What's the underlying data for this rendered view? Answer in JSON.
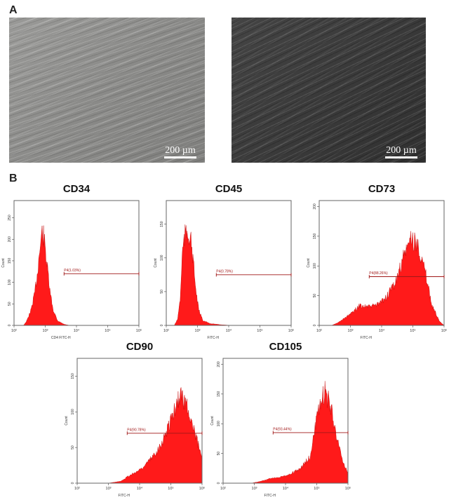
{
  "panel_a": {
    "label": "A",
    "images": [
      {
        "scale_bar": "200 µm"
      },
      {
        "scale_bar": "200 µm"
      }
    ]
  },
  "panel_b": {
    "label": "B"
  },
  "chart_data": [
    {
      "type": "area",
      "title": "CD34",
      "xlabel": "CD4 FITC-H",
      "ylabel": "Count",
      "xscale": "log",
      "xlim": [
        100,
        1000000
      ],
      "ylim": [
        0,
        290
      ],
      "xticks": [
        "10²",
        "10³",
        "10⁴",
        "10⁵",
        "10⁶"
      ],
      "yticks": [
        0,
        50,
        100,
        150,
        200,
        250
      ],
      "gate": {
        "label": "P4(1.03%)",
        "range": [
          4000,
          1000000
        ],
        "level": 120
      },
      "color": "#ff1a1a",
      "points": [
        [
          200,
          0
        ],
        [
          250,
          10
        ],
        [
          350,
          40
        ],
        [
          450,
          80
        ],
        [
          550,
          130
        ],
        [
          650,
          190
        ],
        [
          800,
          245
        ],
        [
          900,
          230
        ],
        [
          1100,
          170
        ],
        [
          1400,
          90
        ],
        [
          1800,
          40
        ],
        [
          2500,
          12
        ],
        [
          4000,
          3
        ],
        [
          6000,
          0
        ]
      ]
    },
    {
      "type": "area",
      "title": "CD45",
      "xlabel": "FITC-H",
      "ylabel": "Count",
      "xscale": "log",
      "xlim": [
        100,
        1000000
      ],
      "ylim": [
        0,
        185
      ],
      "xticks": [
        "10²",
        "10³",
        "10⁴",
        "10⁵",
        "10⁶"
      ],
      "yticks": [
        0,
        50,
        100,
        150
      ],
      "gate": {
        "label": "P4(0.78%)",
        "range": [
          4000,
          1000000
        ],
        "level": 75
      },
      "color": "#ff1a1a",
      "points": [
        [
          180,
          0
        ],
        [
          230,
          10
        ],
        [
          280,
          45
        ],
        [
          330,
          125
        ],
        [
          400,
          150
        ],
        [
          480,
          155
        ],
        [
          600,
          145
        ],
        [
          750,
          100
        ],
        [
          900,
          55
        ],
        [
          1100,
          25
        ],
        [
          1500,
          8
        ],
        [
          2500,
          3
        ],
        [
          6000,
          1
        ],
        [
          12000,
          0
        ]
      ]
    },
    {
      "type": "area",
      "title": "CD73",
      "xlabel": "FITC-H",
      "ylabel": "Count",
      "xscale": "log",
      "xlim": [
        100,
        1000000
      ],
      "ylim": [
        0,
        210
      ],
      "xticks": [
        "10²",
        "10³",
        "10⁴",
        "10⁵",
        "10⁶"
      ],
      "yticks": [
        0,
        50,
        100,
        150,
        200
      ],
      "gate": {
        "label": "P4(88.26%)",
        "range": [
          4000,
          1000000
        ],
        "level": 82
      },
      "color": "#ff1a1a",
      "points": [
        [
          250,
          0
        ],
        [
          400,
          5
        ],
        [
          700,
          15
        ],
        [
          1200,
          25
        ],
        [
          2000,
          38
        ],
        [
          4000,
          35
        ],
        [
          8000,
          40
        ],
        [
          15000,
          55
        ],
        [
          30000,
          85
        ],
        [
          50000,
          130
        ],
        [
          90000,
          165
        ],
        [
          150000,
          150
        ],
        [
          250000,
          100
        ],
        [
          400000,
          40
        ],
        [
          700000,
          8
        ],
        [
          1000000,
          0
        ]
      ]
    },
    {
      "type": "area",
      "title": "CD90",
      "xlabel": "FITC-H",
      "ylabel": "Count",
      "xscale": "log",
      "xlim": [
        100,
        1000000
      ],
      "ylim": [
        0,
        175
      ],
      "xticks": [
        "10²",
        "10³",
        "10⁴",
        "10⁵",
        "10⁶"
      ],
      "yticks": [
        0,
        50,
        100,
        150
      ],
      "gate": {
        "label": "P4(90.78%)",
        "range": [
          4000,
          1000000
        ],
        "level": 70
      },
      "color": "#ff1a1a",
      "points": [
        [
          1000,
          0
        ],
        [
          2500,
          3
        ],
        [
          4000,
          10
        ],
        [
          8000,
          18
        ],
        [
          15000,
          28
        ],
        [
          30000,
          45
        ],
        [
          60000,
          70
        ],
        [
          100000,
          100
        ],
        [
          200000,
          140
        ],
        [
          350000,
          120
        ],
        [
          600000,
          75
        ],
        [
          1000000,
          45
        ]
      ]
    },
    {
      "type": "area",
      "title": "CD105",
      "xlabel": "FITC-H",
      "ylabel": "Count",
      "xscale": "log",
      "xlim": [
        100,
        1000000
      ],
      "ylim": [
        0,
        210
      ],
      "xticks": [
        "10²",
        "10³",
        "10⁴",
        "10⁵",
        "10⁶"
      ],
      "yticks": [
        0,
        50,
        100,
        150,
        200
      ],
      "gate": {
        "label": "P4(93.44%)",
        "range": [
          4000,
          1000000
        ],
        "level": 85
      },
      "color": "#ff1a1a",
      "points": [
        [
          800,
          0
        ],
        [
          1500,
          3
        ],
        [
          4000,
          10
        ],
        [
          8000,
          12
        ],
        [
          15000,
          18
        ],
        [
          30000,
          28
        ],
        [
          60000,
          50
        ],
        [
          100000,
          120
        ],
        [
          180000,
          175
        ],
        [
          300000,
          140
        ],
        [
          500000,
          70
        ],
        [
          800000,
          30
        ],
        [
          1000000,
          20
        ]
      ]
    }
  ]
}
